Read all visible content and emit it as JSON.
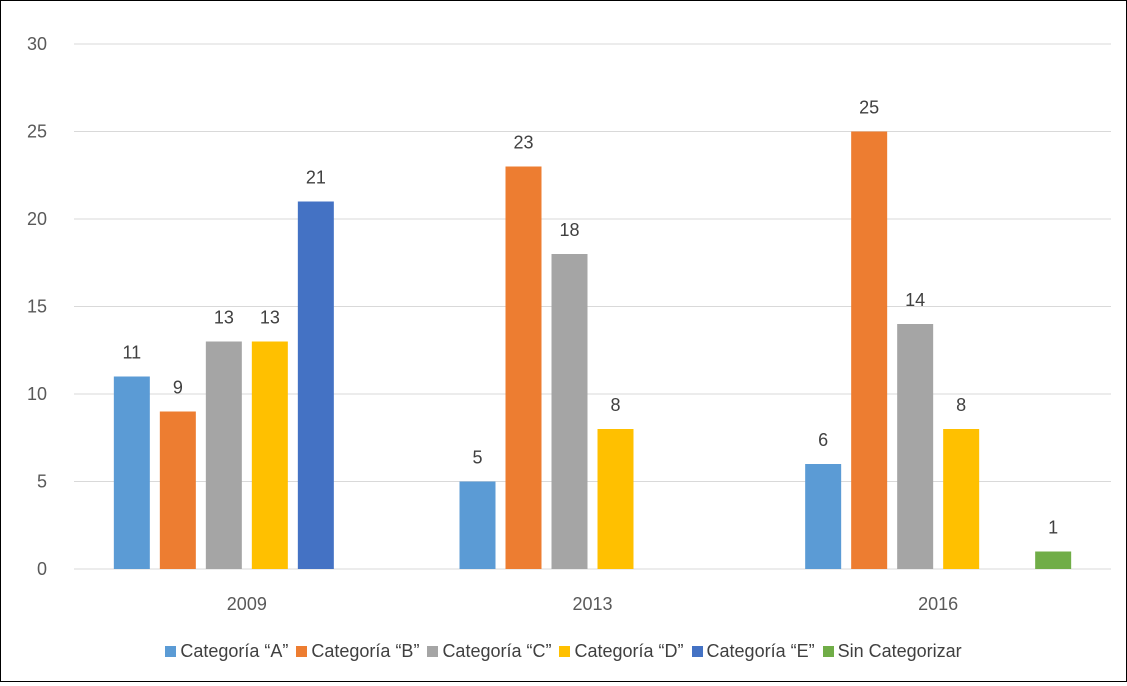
{
  "chart_data": {
    "type": "bar",
    "title": "",
    "xlabel": "",
    "ylabel": "",
    "ylim": [
      0,
      30
    ],
    "yticks": [
      0,
      5,
      10,
      15,
      20,
      25,
      30
    ],
    "grid": true,
    "legend_position": "bottom",
    "categories": [
      "2009",
      "2013",
      "2016"
    ],
    "series": [
      {
        "name": "Categoría “A”",
        "color": "#5B9BD5",
        "values": [
          11,
          5,
          6
        ]
      },
      {
        "name": "Categoría “B”",
        "color": "#ED7D31",
        "values": [
          9,
          23,
          25
        ]
      },
      {
        "name": "Categoría “C”",
        "color": "#A5A5A5",
        "values": [
          13,
          18,
          14
        ]
      },
      {
        "name": "Categoría “D”",
        "color": "#FFC000",
        "values": [
          13,
          8,
          8
        ]
      },
      {
        "name": "Categoría “E”",
        "color": "#4472C4",
        "values": [
          21,
          null,
          null
        ]
      },
      {
        "name": "Sin Categorizar",
        "color": "#70AD47",
        "values": [
          null,
          null,
          1
        ]
      }
    ]
  }
}
